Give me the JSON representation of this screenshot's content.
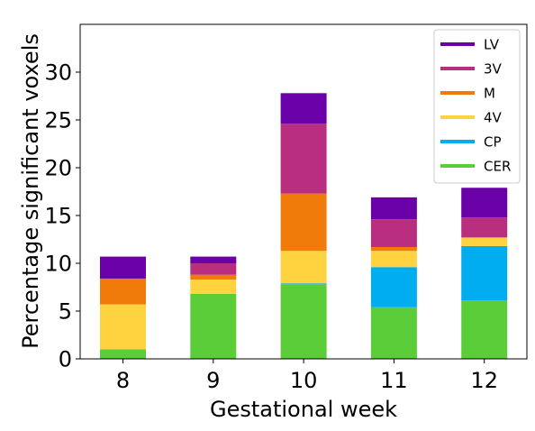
{
  "chart_data": {
    "type": "bar",
    "stacked": true,
    "xlabel": "Gestational week",
    "ylabel": "Percentage significant voxels",
    "categories": [
      "8",
      "9",
      "10",
      "11",
      "12"
    ],
    "ylim": [
      0,
      35
    ],
    "yticks": [
      0,
      5,
      10,
      15,
      20,
      25,
      30
    ],
    "grid": false,
    "legend_position": "top-right",
    "series": [
      {
        "name": "CER",
        "color": "#5ACD38",
        "values": [
          1.0,
          6.8,
          7.8,
          5.4,
          6.1
        ]
      },
      {
        "name": "CP",
        "color": "#00AEEF",
        "values": [
          0.0,
          0.0,
          0.1,
          4.2,
          5.7
        ]
      },
      {
        "name": "4V",
        "color": "#FFD23F",
        "values": [
          4.7,
          1.5,
          3.4,
          1.7,
          0.9
        ]
      },
      {
        "name": "M",
        "color": "#F07B0B",
        "values": [
          2.7,
          0.5,
          6.0,
          0.4,
          0.0
        ]
      },
      {
        "name": "3V",
        "color": "#BA2E7F",
        "values": [
          0.0,
          1.2,
          7.3,
          2.9,
          2.1
        ]
      },
      {
        "name": "LV",
        "color": "#6A00A8",
        "values": [
          2.3,
          0.7,
          3.2,
          2.3,
          3.1
        ]
      }
    ],
    "legend_order": [
      "LV",
      "3V",
      "M",
      "4V",
      "CP",
      "CER"
    ]
  }
}
